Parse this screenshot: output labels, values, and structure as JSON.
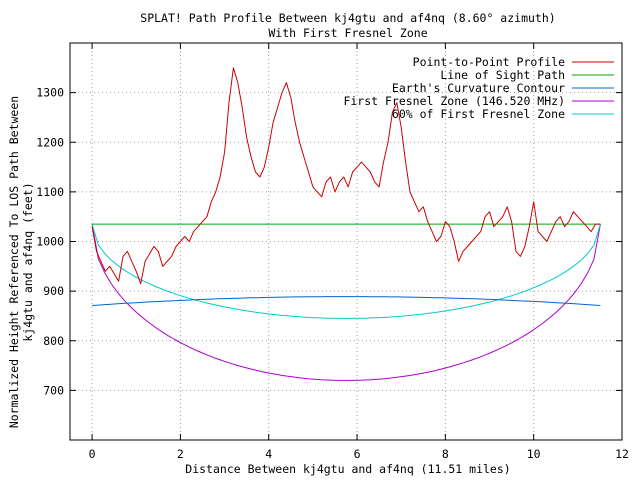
{
  "chart_data": {
    "type": "line",
    "title": "SPLAT! Path Profile Between kj4gtu and af4nq (8.60° azimuth)",
    "subtitle": "With First Fresnel Zone",
    "xlabel": "Distance Between kj4gtu and af4nq (11.51 miles)",
    "ylabel_line1": "Normalized Height Referenced To LOS Path Between",
    "ylabel_line2": "kj4gtu and af4nq (feet)",
    "xlim": [
      -0.5,
      12
    ],
    "ylim": [
      600,
      1400
    ],
    "xticks": [
      0,
      2,
      4,
      6,
      8,
      10,
      12
    ],
    "yticks": [
      700,
      800,
      900,
      1000,
      1100,
      1200,
      1300
    ],
    "grid": true,
    "legend_position": "top-right",
    "series": [
      {
        "name": "Point-to-Point Profile",
        "color": "#cc0000",
        "x": [
          0,
          0.1,
          0.2,
          0.3,
          0.4,
          0.5,
          0.6,
          0.7,
          0.8,
          0.9,
          1.0,
          1.1,
          1.2,
          1.3,
          1.4,
          1.5,
          1.6,
          1.7,
          1.8,
          1.9,
          2.0,
          2.1,
          2.2,
          2.3,
          2.4,
          2.5,
          2.6,
          2.7,
          2.8,
          2.9,
          3.0,
          3.05,
          3.1,
          3.2,
          3.3,
          3.4,
          3.5,
          3.6,
          3.7,
          3.8,
          3.9,
          4.0,
          4.1,
          4.2,
          4.3,
          4.4,
          4.5,
          4.6,
          4.7,
          4.8,
          4.9,
          5.0,
          5.1,
          5.2,
          5.3,
          5.4,
          5.5,
          5.6,
          5.7,
          5.8,
          5.9,
          6.0,
          6.1,
          6.2,
          6.3,
          6.4,
          6.5,
          6.6,
          6.7,
          6.8,
          6.9,
          7.0,
          7.1,
          7.2,
          7.3,
          7.4,
          7.5,
          7.6,
          7.7,
          7.8,
          7.9,
          8.0,
          8.1,
          8.2,
          8.3,
          8.4,
          8.5,
          8.6,
          8.7,
          8.8,
          8.9,
          9.0,
          9.1,
          9.2,
          9.3,
          9.4,
          9.5,
          9.6,
          9.7,
          9.8,
          9.9,
          10.0,
          10.1,
          10.2,
          10.3,
          10.4,
          10.5,
          10.6,
          10.7,
          10.8,
          10.9,
          11.0,
          11.1,
          11.2,
          11.3,
          11.4,
          11.51
        ],
        "y": [
          1030,
          980,
          960,
          940,
          950,
          935,
          920,
          970,
          980,
          960,
          940,
          915,
          960,
          975,
          990,
          980,
          950,
          960,
          970,
          990,
          1000,
          1010,
          1000,
          1020,
          1030,
          1040,
          1050,
          1080,
          1100,
          1130,
          1180,
          1230,
          1280,
          1350,
          1320,
          1270,
          1210,
          1170,
          1140,
          1130,
          1150,
          1190,
          1240,
          1270,
          1300,
          1320,
          1290,
          1240,
          1200,
          1170,
          1140,
          1110,
          1100,
          1090,
          1120,
          1130,
          1100,
          1120,
          1130,
          1110,
          1140,
          1150,
          1160,
          1150,
          1140,
          1120,
          1110,
          1160,
          1200,
          1260,
          1280,
          1230,
          1160,
          1100,
          1080,
          1060,
          1070,
          1040,
          1020,
          1000,
          1010,
          1040,
          1030,
          1000,
          960,
          980,
          990,
          1000,
          1010,
          1020,
          1050,
          1060,
          1030,
          1040,
          1050,
          1070,
          1040,
          980,
          970,
          990,
          1030,
          1080,
          1020,
          1010,
          1000,
          1020,
          1040,
          1050,
          1030,
          1040,
          1060,
          1050,
          1040,
          1030,
          1020,
          1035,
          1035
        ]
      },
      {
        "name": "Line of Sight Path",
        "color": "#00aa00",
        "x": [
          0,
          11.51
        ],
        "y": [
          1035,
          1035
        ]
      },
      {
        "name": "Earth's Curvature Contour",
        "color": "#0066cc",
        "shape": "arc",
        "x_start": 0,
        "x_end": 11.51,
        "y_start": 871,
        "y_end": 871,
        "y_apex": 889
      },
      {
        "name": "First Fresnel Zone (146.520 MHz)",
        "color": "#aa00cc",
        "shape": "ellipse",
        "x_start": 0,
        "x_end": 11.51,
        "y_los": 1035,
        "y_min": 720
      },
      {
        "name": "60% of First Fresnel Zone",
        "color": "#00cccc",
        "shape": "ellipse",
        "x_start": 0,
        "x_end": 11.51,
        "y_los": 1035,
        "y_min": 845
      }
    ]
  }
}
